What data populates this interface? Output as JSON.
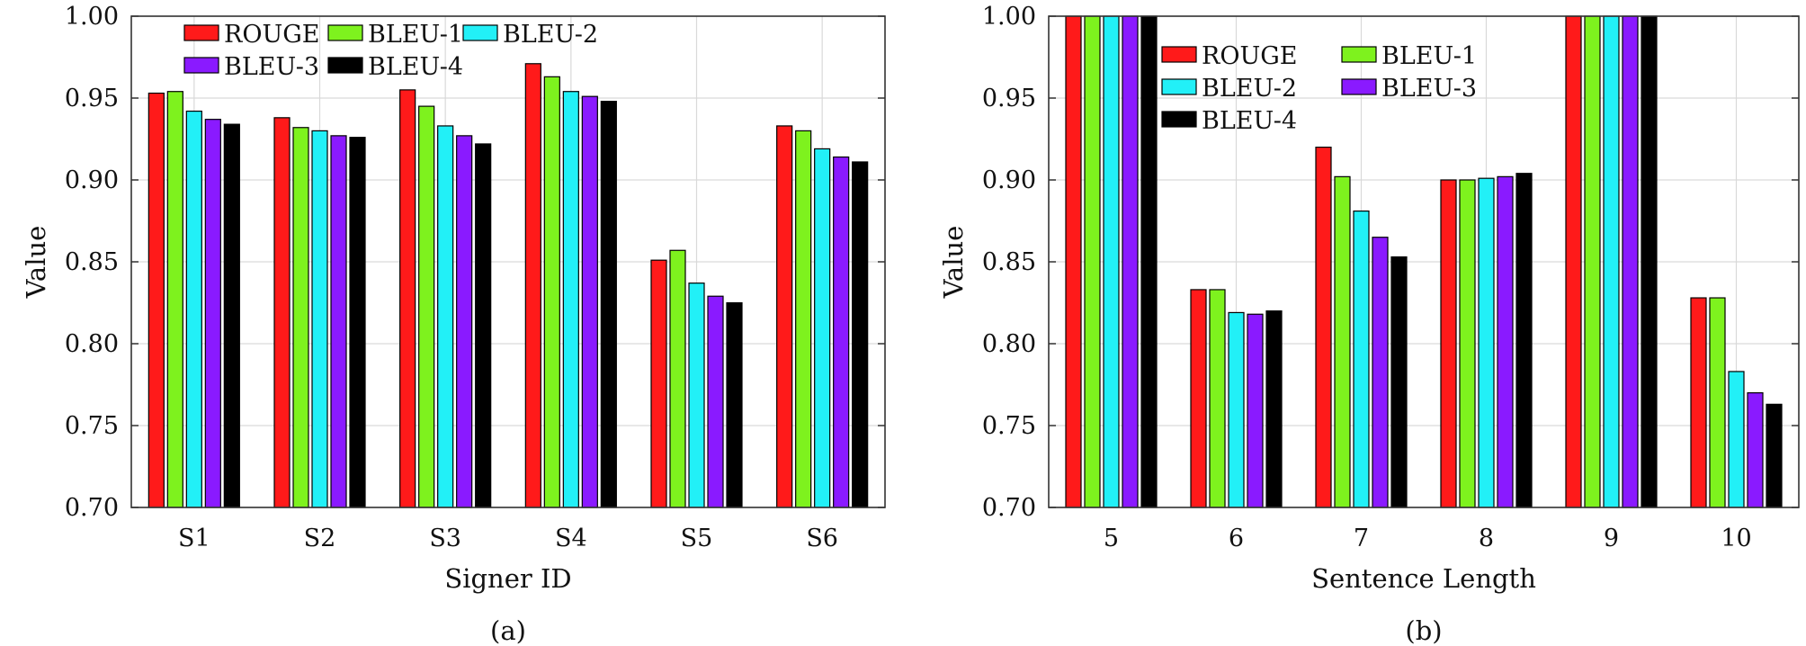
{
  "colors": {
    "ROUGE": "#ff1a1a",
    "BLEU-1": "#7ef21e",
    "BLEU-2": "#22f0f7",
    "BLEU-3": "#8a1aff",
    "BLEU-4": "#000000",
    "grid": "#d9d9d9",
    "axis": "#333333"
  },
  "chart_data": [
    {
      "type": "bar",
      "caption": "(a)",
      "xlabel": "Signer ID",
      "ylabel": "Value",
      "ylim": [
        0.7,
        1.0
      ],
      "yticks": [
        "0.70",
        "0.75",
        "0.80",
        "0.85",
        "0.90",
        "0.95",
        "1.00"
      ],
      "grid": true,
      "legend_position": "top-left",
      "legend_columns": 3,
      "categories": [
        "S1",
        "S2",
        "S3",
        "S4",
        "S5",
        "S6"
      ],
      "series": [
        {
          "name": "ROUGE",
          "values": [
            0.953,
            0.938,
            0.955,
            0.971,
            0.851,
            0.933
          ]
        },
        {
          "name": "BLEU-1",
          "values": [
            0.954,
            0.932,
            0.945,
            0.963,
            0.857,
            0.93
          ]
        },
        {
          "name": "BLEU-2",
          "values": [
            0.942,
            0.93,
            0.933,
            0.954,
            0.837,
            0.919
          ]
        },
        {
          "name": "BLEU-3",
          "values": [
            0.937,
            0.927,
            0.927,
            0.951,
            0.829,
            0.914
          ]
        },
        {
          "name": "BLEU-4",
          "values": [
            0.934,
            0.926,
            0.922,
            0.948,
            0.825,
            0.911
          ]
        }
      ]
    },
    {
      "type": "bar",
      "caption": "(b)",
      "xlabel": "Sentence Length",
      "ylabel": "Value",
      "ylim": [
        0.7,
        1.0
      ],
      "yticks": [
        "0.70",
        "0.75",
        "0.80",
        "0.85",
        "0.90",
        "0.95",
        "1.00"
      ],
      "grid": true,
      "legend_position": "top-left",
      "legend_columns": 2,
      "categories": [
        "5",
        "6",
        "7",
        "8",
        "9",
        "10"
      ],
      "series": [
        {
          "name": "ROUGE",
          "values": [
            1.0,
            0.833,
            0.92,
            0.9,
            1.0,
            0.828
          ]
        },
        {
          "name": "BLEU-1",
          "values": [
            1.0,
            0.833,
            0.902,
            0.9,
            1.0,
            0.828
          ]
        },
        {
          "name": "BLEU-2",
          "values": [
            1.0,
            0.819,
            0.881,
            0.901,
            1.0,
            0.783
          ]
        },
        {
          "name": "BLEU-3",
          "values": [
            1.0,
            0.818,
            0.865,
            0.902,
            1.0,
            0.77
          ]
        },
        {
          "name": "BLEU-4",
          "values": [
            1.0,
            0.82,
            0.853,
            0.904,
            1.0,
            0.763
          ]
        }
      ]
    }
  ]
}
